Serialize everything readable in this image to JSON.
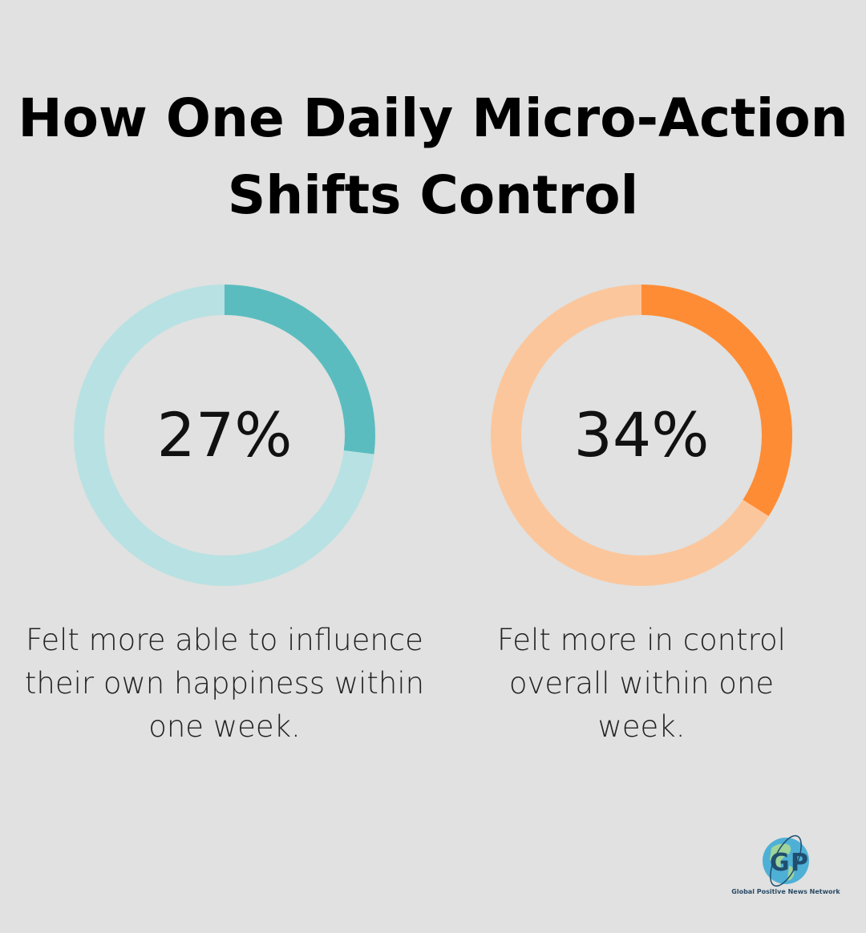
{
  "title": "How One Daily Micro-Action Shifts Control",
  "chart_data": [
    {
      "type": "pie",
      "subtype": "donut",
      "value": 27,
      "label": "27%",
      "caption": "Felt more able to influence their own happiness within one week.",
      "color": "#5bbcbf",
      "track_color": "#b8e1e3"
    },
    {
      "type": "pie",
      "subtype": "donut",
      "value": 34,
      "label": "34%",
      "caption": "Felt more in control overall within one week.",
      "color": "#fe8c35",
      "track_color": "#fcc69c"
    }
  ],
  "logo": {
    "letters": "G P",
    "text": "Global Positive News Network"
  }
}
